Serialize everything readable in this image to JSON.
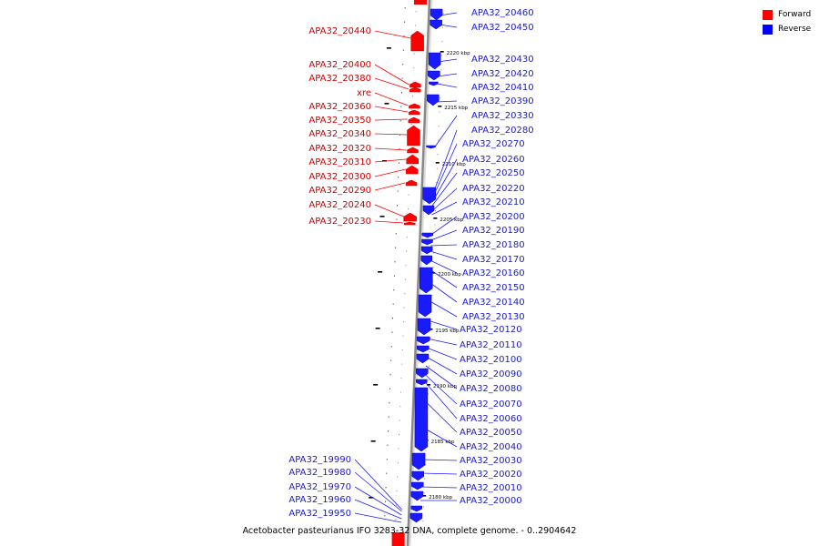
{
  "caption": "Acetobacter pasteurianus IFO 3283-32 DNA, complete genome. - 0..2904642",
  "legend": [
    {
      "label": "Forward",
      "color": "#ff0000"
    },
    {
      "label": "Reverse",
      "color": "#0000ff"
    }
  ],
  "colors": {
    "forward": "#ff0000",
    "reverse": "#1a1aff",
    "axis": "#888888"
  },
  "kbp_ticks": [
    "2220 kbp",
    "2215 kbp",
    "2210 kbp",
    "2205 kbp",
    "2200 kbp",
    "2195 kbp",
    "2190 kbp",
    "2185 kbp",
    "2180 kbp"
  ],
  "forward_genes": [
    "APA32_20440",
    "APA32_20400",
    "APA32_20380",
    "xre",
    "APA32_20360",
    "APA32_20350",
    "APA32_20340",
    "APA32_20320",
    "APA32_20310",
    "APA32_20300",
    "APA32_20290",
    "APA32_20240",
    "APA32_20230"
  ],
  "reverse_genes": [
    "APA32_20460",
    "APA32_20450",
    "APA32_20430",
    "APA32_20420",
    "APA32_20410",
    "APA32_20390",
    "APA32_20330",
    "APA32_20280",
    "APA32_20270",
    "APA32_20260",
    "APA32_20250",
    "APA32_20220",
    "APA32_20210",
    "APA32_20200",
    "APA32_20190",
    "APA32_20180",
    "APA32_20170",
    "APA32_20160",
    "APA32_20150",
    "APA32_20140",
    "APA32_20130",
    "APA32_20120",
    "APA32_20110",
    "APA32_20100",
    "APA32_20090",
    "APA32_20080",
    "APA32_20070",
    "APA32_20060",
    "APA32_20050",
    "APA32_20040",
    "APA32_20030",
    "APA32_20020",
    "APA32_20010",
    "APA32_20000"
  ],
  "left_reverse_genes": [
    "APA32_19990",
    "APA32_19980",
    "APA32_19970",
    "APA32_19960",
    "APA32_19950"
  ]
}
